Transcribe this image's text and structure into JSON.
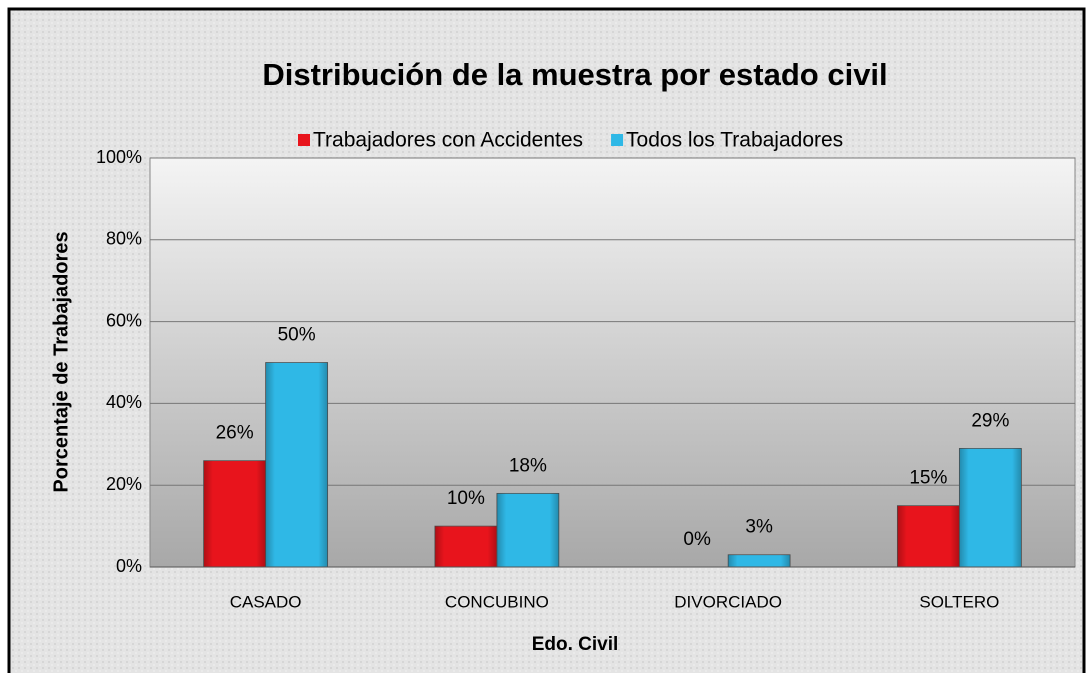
{
  "chart_data": {
    "type": "bar",
    "title": "Distribución de la muestra por estado civil",
    "x_label": "Edo. Civil",
    "y_label": "Porcentaje de Trabajadores",
    "categories": [
      "CASADO",
      "CONCUBINO",
      "DIVORCIADO",
      "SOLTERO"
    ],
    "series": [
      {
        "name": "Trabajadores con Accidentes",
        "color": "#e8141c",
        "values": [
          26,
          10,
          0,
          15
        ],
        "value_labels": [
          "26%",
          "10%",
          "0%",
          "15%"
        ]
      },
      {
        "name": "Todos los Trabajadores",
        "color": "#2fb8e6",
        "values": [
          50,
          18,
          3,
          29
        ],
        "value_labels": [
          "50%",
          "18%",
          "3%",
          "29%"
        ]
      }
    ],
    "ylim": [
      0,
      100
    ],
    "yticks": [
      {
        "value": 0,
        "label": "0%"
      },
      {
        "value": 20,
        "label": "20%"
      },
      {
        "value": 40,
        "label": "40%"
      },
      {
        "value": 60,
        "label": "60%"
      },
      {
        "value": 80,
        "label": "80%"
      },
      {
        "value": 100,
        "label": "100%"
      }
    ],
    "grid": true,
    "legend": "top"
  }
}
